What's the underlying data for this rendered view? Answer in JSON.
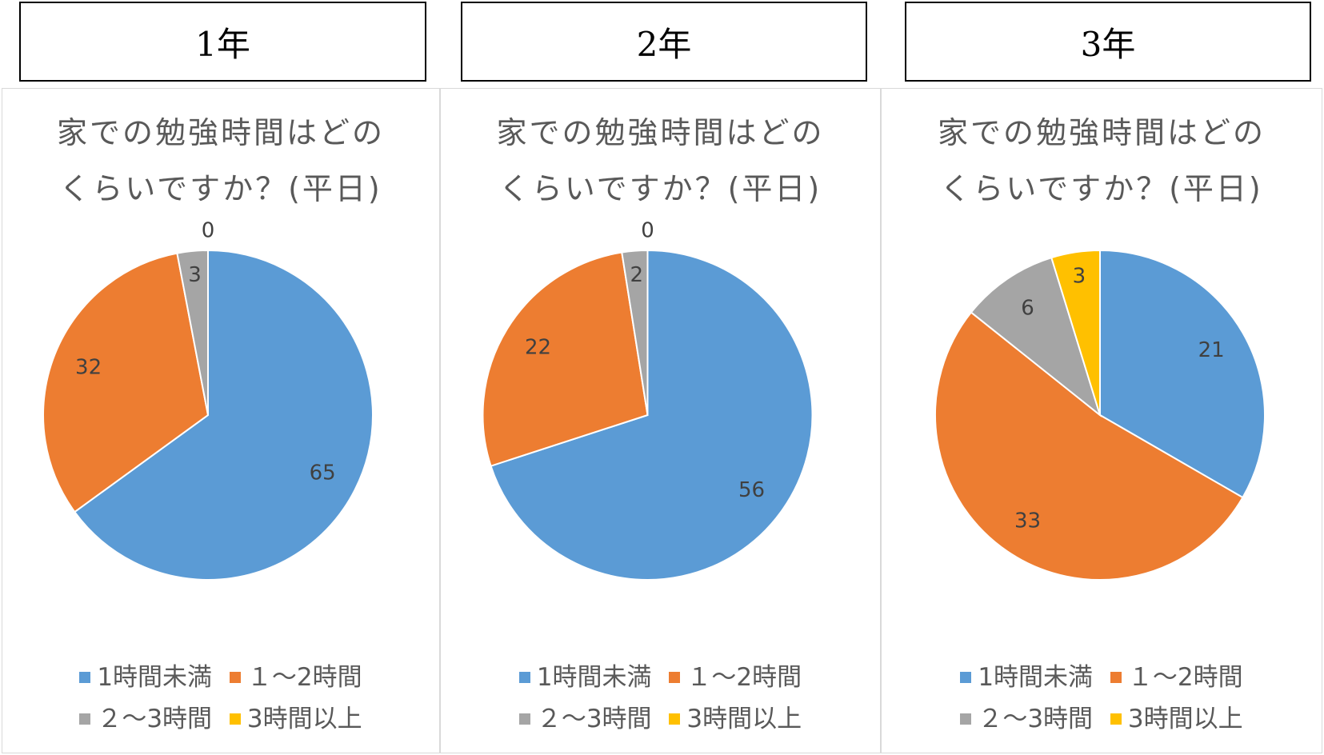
{
  "grades": [
    "1年",
    "2年",
    "3年"
  ],
  "colors": {
    "lt1": "#5B9BD5",
    "h1to2": "#ED7D31",
    "h2to3": "#A5A5A5",
    "h3plus": "#FFC000"
  },
  "legend": [
    "1時間未満",
    "１～2時間",
    "２～3時間",
    "3時間以上"
  ],
  "chart_data": [
    {
      "type": "pie",
      "title_lines": [
        "家での勉強時間はどの",
        "くらいですか？(平日)"
      ],
      "categories": [
        "1時間未満",
        "１～2時間",
        "２～3時間",
        "3時間以上"
      ],
      "values": [
        65,
        32,
        3,
        0
      ],
      "legend_position": "bottom"
    },
    {
      "type": "pie",
      "title_lines": [
        "家での勉強時間はどの",
        "くらいですか？(平日)"
      ],
      "categories": [
        "1時間未満",
        "１～2時間",
        "２～3時間",
        "3時間以上"
      ],
      "values": [
        56,
        22,
        2,
        0
      ],
      "legend_position": "bottom"
    },
    {
      "type": "pie",
      "title_lines": [
        "家での勉強時間はどの",
        "くらいですか？(平日)"
      ],
      "categories": [
        "1時間未満",
        "１～2時間",
        "２～3時間",
        "3時間以上"
      ],
      "values": [
        21,
        33,
        6,
        3
      ],
      "legend_position": "bottom"
    }
  ]
}
